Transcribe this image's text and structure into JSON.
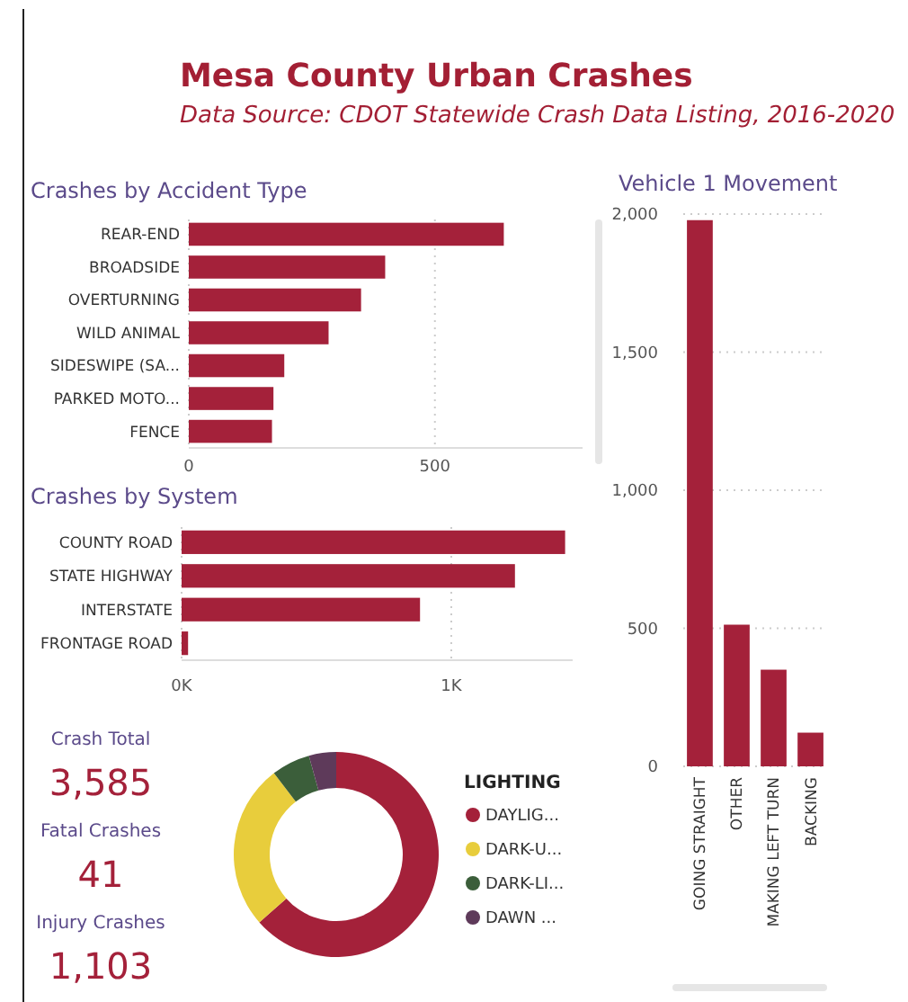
{
  "chart_data": [
    {
      "type": "other",
      "title": "Mesa County Urban Crashes",
      "subtitle": "Data Source: CDOT Statewide Crash Data Listing, 2016-2020"
    },
    {
      "type": "bar",
      "orientation": "horizontal",
      "title": "Crashes by Accident Type",
      "categories": [
        "REAR-END",
        "BROADSIDE",
        "OVERTURNING",
        "WILD ANIMAL",
        "SIDESWIPE (SA...",
        "PARKED MOTO...",
        "FENCE"
      ],
      "values": [
        640,
        399,
        350,
        284,
        194,
        172,
        169
      ],
      "color": "#a4213a",
      "xlim": [
        0,
        800
      ],
      "xticks": [
        0,
        500
      ],
      "grid": "x"
    },
    {
      "type": "bar",
      "orientation": "horizontal",
      "title": "Crashes by System",
      "categories": [
        "COUNTY ROAD",
        "STATE HIGHWAY",
        "INTERSTATE",
        "FRONTAGE ROAD"
      ],
      "values": [
        1422,
        1236,
        884,
        24
      ],
      "color": "#a4213a",
      "xlim": [
        0,
        1450
      ],
      "xticks": [
        {
          "value": 0,
          "label": "0K"
        },
        {
          "value": 1000,
          "label": "1K"
        }
      ],
      "grid": "x"
    },
    {
      "type": "bar",
      "title": "Vehicle 1 Movement",
      "categories": [
        "GOING STRAIGHT",
        "OTHER",
        "MAKING LEFT TURN",
        "BACKING"
      ],
      "values": [
        1978,
        513,
        350,
        122
      ],
      "color": "#a4213a",
      "ylim": [
        0,
        2000
      ],
      "yticks": [
        0,
        {
          "value": 500,
          "label": "500"
        },
        {
          "value": 1000,
          "label": "1,000"
        },
        {
          "value": 1500,
          "label": "1,500"
        },
        {
          "value": 2000,
          "label": "2,000"
        }
      ],
      "grid": "y"
    },
    {
      "type": "other",
      "annotations": [
        "Crash Total",
        "3,585",
        "Fatal Crashes",
        "41",
        "Injury Crashes",
        "1,103"
      ]
    },
    {
      "type": "donut",
      "legend_title": "LIGHTING",
      "legend": "right",
      "categories": [
        "DAYLIG...",
        "DARK-U...",
        "DARK-LI...",
        "DAWN ..."
      ],
      "values": [
        63.5,
        26.1,
        6.1,
        4.3
      ],
      "colors": [
        "#a4213a",
        "#e8cd3c",
        "#3b5e3a",
        "#5e3a5a"
      ]
    }
  ]
}
